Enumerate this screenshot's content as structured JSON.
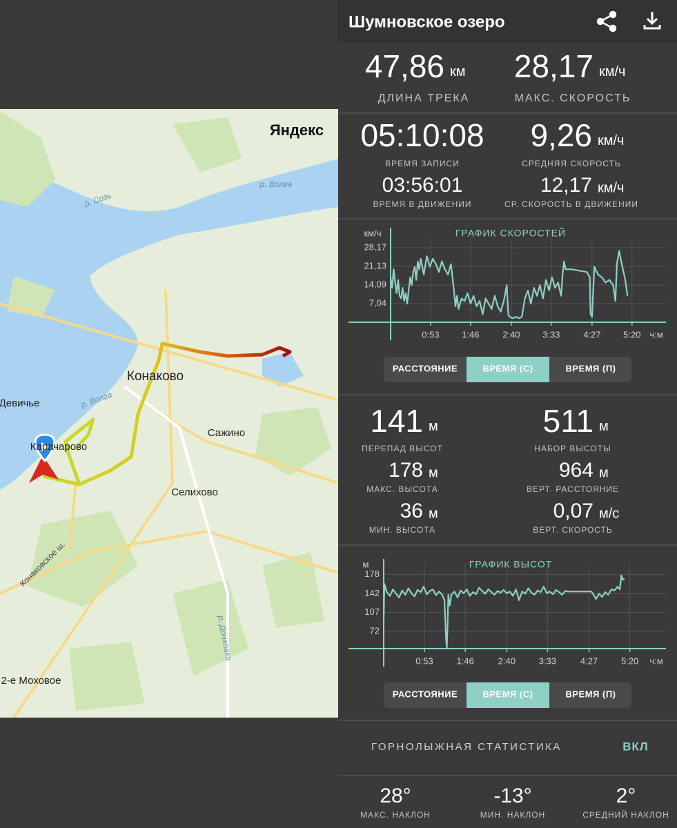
{
  "header": {
    "title": "Шумновское озеро"
  },
  "map": {
    "logo": "Яндекс",
    "labels": [
      "р. Волга",
      "р. Созь",
      "р. Волга",
      "Конаково",
      "Девичье",
      "Карачарово",
      "Сажино",
      "Селихово",
      "Конаковское ш.",
      "р. Донховка",
      "2-е Моховое"
    ]
  },
  "stats": {
    "track_length": {
      "value": "47,86",
      "unit": "км",
      "label": "ДЛИНА ТРЕКА"
    },
    "max_speed": {
      "value": "28,17",
      "unit": "км/ч",
      "label": "МАКС. СКОРОСТЬ"
    },
    "record_time": {
      "value": "05:10:08",
      "label": "ВРЕМЯ ЗАПИСИ"
    },
    "avg_speed": {
      "value": "9,26",
      "unit": "км/ч",
      "label": "СРЕДНЯЯ СКОРОСТЬ"
    },
    "moving_time": {
      "value": "03:56:01",
      "label": "ВРЕМЯ В ДВИЖЕНИИ"
    },
    "moving_avg_speed": {
      "value": "12,17",
      "unit": "км/ч",
      "label": "СР. СКОРОСТЬ В ДВИЖЕНИИ"
    },
    "elevation_diff": {
      "value": "141",
      "unit": "м",
      "label": "ПЕРЕПАД ВЫСОТ"
    },
    "elevation_gain": {
      "value": "511",
      "unit": "м",
      "label": "НАБОР ВЫСОТЫ"
    },
    "max_elevation": {
      "value": "178",
      "unit": "м",
      "label": "МАКС. ВЫСОТА"
    },
    "vertical_distance": {
      "value": "964",
      "unit": "м",
      "label": "ВЕРТ. РАССТОЯНИЕ"
    },
    "min_elevation": {
      "value": "36",
      "unit": "м",
      "label": "МИН. ВЫСОТА"
    },
    "vertical_speed": {
      "value": "0,07",
      "unit": "м/с",
      "label": "ВЕРТ. СКОРОСТЬ"
    }
  },
  "chart_data": [
    {
      "type": "line",
      "title": "ГРАФИК СКОРОСТЕЙ",
      "ylabel": "км/ч",
      "xlabel": "ч:м",
      "color": "#8fd0c4",
      "xlim": [
        0,
        365
      ],
      "ylim": [
        0,
        30
      ],
      "xticks": [
        {
          "value": 53,
          "label": "0:53"
        },
        {
          "value": 106,
          "label": "1:46"
        },
        {
          "value": 160,
          "label": "2:40"
        },
        {
          "value": 213,
          "label": "3:33"
        },
        {
          "value": 267,
          "label": "4:27"
        },
        {
          "value": 320,
          "label": "5:20"
        }
      ],
      "yticks": [
        {
          "value": 7.04,
          "label": "7,04"
        },
        {
          "value": 14.09,
          "label": "14,09"
        },
        {
          "value": 21.13,
          "label": "21,13"
        },
        {
          "value": 28.17,
          "label": "28,17"
        }
      ],
      "x": [
        0,
        2,
        4,
        6,
        8,
        10,
        12,
        14,
        16,
        18,
        20,
        22,
        24,
        26,
        28,
        30,
        32,
        34,
        36,
        38,
        40,
        44,
        48,
        52,
        56,
        60,
        64,
        68,
        72,
        76,
        80,
        84,
        86,
        88,
        90,
        94,
        98,
        102,
        106,
        110,
        114,
        118,
        122,
        126,
        130,
        134,
        138,
        142,
        146,
        150,
        154,
        156,
        158,
        162,
        166,
        170,
        174,
        178,
        182,
        186,
        190,
        194,
        198,
        202,
        206,
        210,
        214,
        218,
        222,
        226,
        228,
        230,
        232,
        240,
        250,
        260,
        264,
        265,
        267,
        270,
        275,
        280,
        285,
        290,
        295,
        298,
        300,
        303,
        305,
        308,
        311,
        314
      ],
      "values": [
        17,
        13,
        20,
        15,
        11,
        16,
        10,
        9,
        13,
        8,
        11,
        7,
        12,
        17,
        14,
        19,
        21,
        16,
        23,
        20,
        24,
        18,
        25,
        21,
        24,
        22,
        19,
        23,
        20,
        18,
        22,
        12,
        6,
        10,
        5,
        9,
        8,
        11,
        7,
        10,
        6,
        8,
        3,
        9,
        7,
        5,
        10,
        6,
        4,
        8,
        14,
        3,
        2,
        1.5,
        2,
        1.5,
        2,
        9,
        12,
        7,
        13,
        10,
        14,
        9,
        16,
        12,
        17,
        13,
        15,
        10,
        18,
        23,
        20,
        20,
        19.5,
        19,
        17,
        3,
        2,
        21,
        18,
        17,
        15,
        16,
        14,
        8,
        22,
        27,
        24,
        20,
        16,
        10
      ]
    },
    {
      "type": "line",
      "title": "ГРАФИК ВЫСОТ",
      "ylabel": "м",
      "xlabel": "ч:м",
      "color": "#8fd0c4",
      "xlim": [
        0,
        367
      ],
      "ylim": [
        40,
        190
      ],
      "xticks": [
        {
          "value": 53,
          "label": "0:53"
        },
        {
          "value": 106,
          "label": "1:46"
        },
        {
          "value": 160,
          "label": "2:40"
        },
        {
          "value": 213,
          "label": "3:33"
        },
        {
          "value": 267,
          "label": "4:27"
        },
        {
          "value": 320,
          "label": "5:20"
        }
      ],
      "yticks": [
        72,
        107,
        142,
        178
      ],
      "x": [
        0,
        1,
        4,
        8,
        12,
        16,
        20,
        24,
        28,
        32,
        36,
        40,
        44,
        48,
        52,
        56,
        60,
        64,
        68,
        72,
        76,
        79,
        81,
        82,
        83,
        84,
        86,
        88,
        92,
        96,
        100,
        104,
        108,
        112,
        116,
        120,
        124,
        128,
        132,
        136,
        140,
        144,
        148,
        152,
        156,
        160,
        164,
        168,
        172,
        176,
        180,
        184,
        188,
        192,
        196,
        200,
        204,
        208,
        212,
        216,
        220,
        224,
        228,
        232,
        236,
        240,
        250,
        260,
        270,
        273,
        276,
        280,
        284,
        288,
        292,
        296,
        300,
        304,
        307,
        309,
        311,
        313
      ],
      "values": [
        95,
        160,
        145,
        138,
        150,
        142,
        135,
        148,
        140,
        152,
        143,
        137,
        149,
        145,
        155,
        141,
        147,
        150,
        139,
        146,
        140,
        130,
        60,
        40,
        80,
        140,
        120,
        140,
        146,
        135,
        148,
        143,
        150,
        138,
        145,
        141,
        153,
        147,
        142,
        150,
        145,
        140,
        147,
        144,
        149,
        143,
        146,
        138,
        150,
        130,
        146,
        142,
        152,
        144,
        140,
        148,
        145,
        155,
        143,
        146,
        141,
        149,
        145,
        140,
        147,
        146,
        146,
        146,
        146,
        140,
        132,
        142,
        136,
        145,
        140,
        150,
        148,
        155,
        150,
        176,
        168,
        170
      ]
    }
  ],
  "chart_buttons": [
    [
      "РАССТОЯНИЕ",
      "ВРЕМЯ (С)",
      "ВРЕМЯ (П)"
    ],
    [
      "РАССТОЯНИЕ",
      "ВРЕМЯ (С)",
      "ВРЕМЯ (П)"
    ]
  ],
  "ski": {
    "title": "ГОРНОЛЫЖНАЯ СТАТИСТИКА",
    "toggle": "ВКЛ",
    "stats": [
      {
        "value": "28°",
        "label": "МАКС. НАКЛОН"
      },
      {
        "value": "-13°",
        "label": "МИН. НАКЛОН"
      },
      {
        "value": "2°",
        "label": "СРЕДНИЙ НАКЛОН"
      }
    ]
  }
}
